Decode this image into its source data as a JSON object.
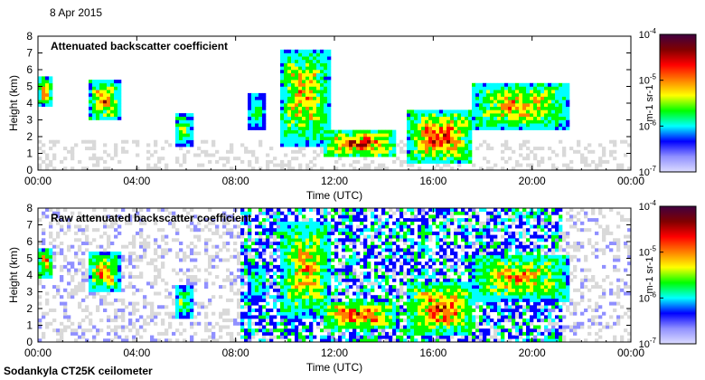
{
  "date_label": "8 Apr 2015",
  "footer_label": "Sodankyla CT25K ceilometer",
  "colors": {
    "background_data": "#d9d9d9",
    "colormap": [
      "#dcdcff",
      "#9090ff",
      "#0000ff",
      "#00ffff",
      "#00ff00",
      "#ffff00",
      "#ff8000",
      "#ff0000",
      "#800000",
      "#400040"
    ]
  },
  "chart_data": [
    {
      "type": "heatmap",
      "title": "Attenuated backscatter coefficient",
      "xlabel": "Time (UTC)",
      "ylabel": "Height (km)",
      "x_ticks": [
        "00:00",
        "04:00",
        "08:00",
        "12:00",
        "16:00",
        "20:00",
        "00:00"
      ],
      "y_ticks": [
        "0",
        "1",
        "2",
        "3",
        "4",
        "5",
        "6",
        "7",
        "8"
      ],
      "ylim": [
        0,
        8
      ],
      "xlim_hours": [
        0,
        24
      ],
      "colorbar": {
        "scale": "log",
        "range": [
          1e-07,
          0.0001
        ],
        "labels": [
          "10-7",
          "10-6",
          "10-5",
          "10-4"
        ],
        "unit": "m-1 sr-1"
      },
      "features": [
        {
          "t_start": 0.0,
          "t_end": 0.6,
          "h_low": 3.8,
          "h_high": 5.6,
          "peak": 0.8
        },
        {
          "t_start": 2.1,
          "t_end": 3.3,
          "h_low": 3.0,
          "h_high": 5.3,
          "peak": 0.85
        },
        {
          "t_start": 5.5,
          "t_end": 6.3,
          "h_low": 1.5,
          "h_high": 3.4,
          "peak": 0.6
        },
        {
          "t_start": 8.5,
          "t_end": 9.2,
          "h_low": 2.5,
          "h_high": 4.6,
          "peak": 0.55
        },
        {
          "t_start": 9.8,
          "t_end": 11.8,
          "h_low": 1.5,
          "h_high": 7.2,
          "peak": 0.8
        },
        {
          "t_start": 11.5,
          "t_end": 14.5,
          "h_low": 0.8,
          "h_high": 2.4,
          "peak": 0.95
        },
        {
          "t_start": 15.0,
          "t_end": 17.6,
          "h_low": 0.5,
          "h_high": 3.5,
          "peak": 0.95
        },
        {
          "t_start": 17.5,
          "t_end": 21.5,
          "h_low": 2.5,
          "h_high": 5.2,
          "peak": 0.8
        }
      ]
    },
    {
      "type": "heatmap",
      "title": "Raw attenuated backscatter coefficient",
      "xlabel": "Time (UTC)",
      "ylabel": "Height (km)",
      "x_ticks": [
        "00:00",
        "04:00",
        "08:00",
        "12:00",
        "16:00",
        "20:00",
        "00:00"
      ],
      "y_ticks": [
        "0",
        "1",
        "2",
        "3",
        "4",
        "5",
        "6",
        "7",
        "8"
      ],
      "ylim": [
        0,
        8
      ],
      "xlim_hours": [
        0,
        24
      ],
      "colorbar": {
        "scale": "log",
        "range": [
          1e-07,
          0.0001
        ],
        "labels": [
          "10-7",
          "10-6",
          "10-5",
          "10-4"
        ],
        "unit": "m-1 sr-1"
      },
      "features": [
        {
          "t_start": 0.0,
          "t_end": 0.6,
          "h_low": 3.8,
          "h_high": 5.6,
          "peak": 0.8
        },
        {
          "t_start": 2.1,
          "t_end": 3.3,
          "h_low": 3.0,
          "h_high": 5.3,
          "peak": 0.85
        },
        {
          "t_start": 5.5,
          "t_end": 6.3,
          "h_low": 1.5,
          "h_high": 3.4,
          "peak": 0.6
        },
        {
          "t_start": 8.5,
          "t_end": 9.2,
          "h_low": 2.5,
          "h_high": 4.6,
          "peak": 0.55
        },
        {
          "t_start": 9.8,
          "t_end": 11.8,
          "h_low": 1.5,
          "h_high": 7.2,
          "peak": 0.8
        },
        {
          "t_start": 11.5,
          "t_end": 14.5,
          "h_low": 0.8,
          "h_high": 2.4,
          "peak": 0.95
        },
        {
          "t_start": 15.0,
          "t_end": 17.6,
          "h_low": 0.5,
          "h_high": 3.5,
          "peak": 0.95
        },
        {
          "t_start": 17.5,
          "t_end": 21.5,
          "h_low": 2.5,
          "h_high": 5.2,
          "peak": 0.8
        }
      ]
    }
  ]
}
